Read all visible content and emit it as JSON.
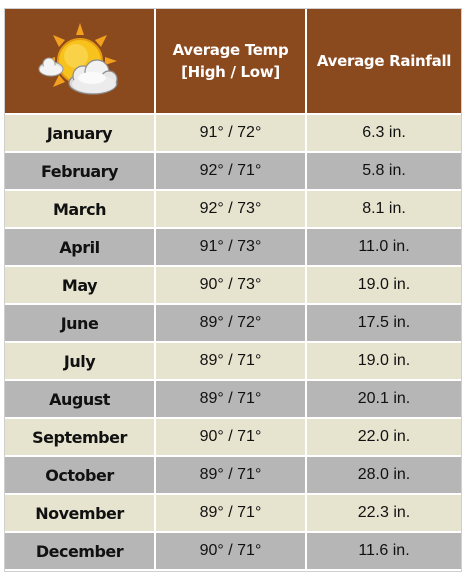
{
  "header": {
    "icon": "sun-behind-clouds-icon",
    "temp_line1": "Average Temp",
    "temp_line2": "[High / Low]",
    "rainfall": "Average Rainfall"
  },
  "colors": {
    "header_bg": "#8b4a1e",
    "row_light": "#e6e4cf",
    "row_dark": "#b6b6b6"
  },
  "rows": [
    {
      "month": "January",
      "temp": "91° / 72°",
      "rain": "6.3 in."
    },
    {
      "month": "February",
      "temp": "92° / 71°",
      "rain": "5.8 in."
    },
    {
      "month": "March",
      "temp": "92° / 73°",
      "rain": "8.1 in."
    },
    {
      "month": "April",
      "temp": "91° / 73°",
      "rain": "11.0 in."
    },
    {
      "month": "May",
      "temp": "90° / 73°",
      "rain": "19.0 in."
    },
    {
      "month": "June",
      "temp": "89° / 72°",
      "rain": "17.5 in."
    },
    {
      "month": "July",
      "temp": "89° / 71°",
      "rain": "19.0 in."
    },
    {
      "month": "August",
      "temp": "89° / 71°",
      "rain": "20.1 in."
    },
    {
      "month": "September",
      "temp": "90° / 71°",
      "rain": "22.0 in."
    },
    {
      "month": "October",
      "temp": "89° / 71°",
      "rain": "28.0 in."
    },
    {
      "month": "November",
      "temp": "89° / 71°",
      "rain": "22.3 in."
    },
    {
      "month": "December",
      "temp": "90° / 71°",
      "rain": "11.6 in."
    }
  ]
}
